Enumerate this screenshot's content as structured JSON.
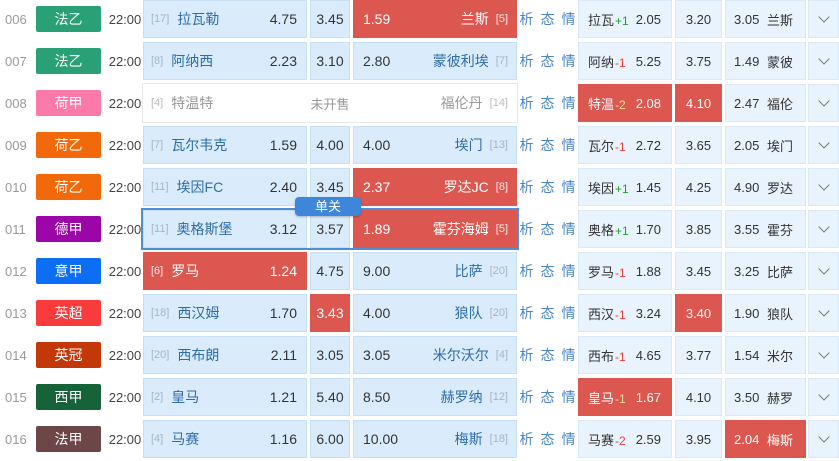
{
  "colors": {
    "hl": "#dc574f",
    "tip": "#3e86da",
    "sel": "#4e8fd6"
  },
  "labels": {
    "links": [
      "析",
      "态",
      "情"
    ],
    "tooltip": "单关",
    "not_on_sale": "未开售"
  },
  "rows": [
    {
      "id": "006",
      "league": {
        "name": "法乙",
        "color": "#2aa076"
      },
      "time": "22:00",
      "home": {
        "rank": "[17]",
        "name": "拉瓦勒",
        "odds": "4.75"
      },
      "draw": {
        "odds": "3.45"
      },
      "away": {
        "odds": "1.59",
        "name": "兰斯",
        "rank": "[5]"
      },
      "highlight": [
        "away"
      ],
      "selected": false,
      "tooltip": false,
      "nosale": false,
      "right": {
        "abbr": "拉瓦",
        "handicap": "+1",
        "o1": "2.05",
        "o2": "3.20",
        "o3": "3.05",
        "team": "兰斯",
        "highlight": []
      }
    },
    {
      "id": "007",
      "league": {
        "name": "法乙",
        "color": "#2aa076"
      },
      "time": "22:00",
      "home": {
        "rank": "[8]",
        "name": "阿纳西",
        "odds": "2.23"
      },
      "draw": {
        "odds": "3.10"
      },
      "away": {
        "odds": "2.80",
        "name": "蒙彼利埃",
        "rank": "[7]"
      },
      "highlight": [],
      "selected": false,
      "tooltip": false,
      "nosale": false,
      "right": {
        "abbr": "阿纳",
        "handicap": "-1",
        "o1": "5.25",
        "o2": "3.75",
        "o3": "1.49",
        "team": "蒙彼",
        "highlight": []
      }
    },
    {
      "id": "008",
      "league": {
        "name": "荷甲",
        "color": "#fb7aa9"
      },
      "time": "22:00",
      "home": {
        "rank": "[4]",
        "name": "特温特",
        "odds": ""
      },
      "draw": {
        "odds": ""
      },
      "away": {
        "odds": "",
        "name": "福伦丹",
        "rank": "[14]"
      },
      "highlight": [],
      "selected": false,
      "tooltip": false,
      "nosale": true,
      "right": {
        "abbr": "特温",
        "handicap": "-2",
        "o1": "2.08",
        "o2": "4.10",
        "o3": "2.47",
        "team": "福伦",
        "highlight": [
          "c1",
          "c2"
        ]
      }
    },
    {
      "id": "009",
      "league": {
        "name": "荷乙",
        "color": "#f2690c"
      },
      "time": "22:00",
      "home": {
        "rank": "[7]",
        "name": "瓦尔韦克",
        "odds": "1.59"
      },
      "draw": {
        "odds": "4.00"
      },
      "away": {
        "odds": "4.00",
        "name": "埃门",
        "rank": "[13]"
      },
      "highlight": [],
      "selected": false,
      "tooltip": false,
      "nosale": false,
      "right": {
        "abbr": "瓦尔",
        "handicap": "-1",
        "o1": "2.72",
        "o2": "3.65",
        "o3": "2.05",
        "team": "埃门",
        "highlight": []
      }
    },
    {
      "id": "010",
      "league": {
        "name": "荷乙",
        "color": "#f2690c"
      },
      "time": "22:00",
      "home": {
        "rank": "[11]",
        "name": "埃因FC",
        "odds": "2.40"
      },
      "draw": {
        "odds": "3.45"
      },
      "away": {
        "odds": "2.37",
        "name": "罗达JC",
        "rank": "[8]"
      },
      "highlight": [
        "away"
      ],
      "selected": false,
      "tooltip": false,
      "nosale": false,
      "right": {
        "abbr": "埃因",
        "handicap": "+1",
        "o1": "1.45",
        "o2": "4.25",
        "o3": "4.90",
        "team": "罗达",
        "highlight": []
      }
    },
    {
      "id": "011",
      "league": {
        "name": "德甲",
        "color": "#9c05a8"
      },
      "time": "22:00",
      "home": {
        "rank": "[11]",
        "name": "奥格斯堡",
        "odds": "3.12"
      },
      "draw": {
        "odds": "3.57"
      },
      "away": {
        "odds": "1.89",
        "name": "霍芬海姆",
        "rank": "[5]"
      },
      "highlight": [
        "away"
      ],
      "selected": true,
      "tooltip": true,
      "nosale": false,
      "right": {
        "abbr": "奥格",
        "handicap": "+1",
        "o1": "1.70",
        "o2": "3.85",
        "o3": "3.55",
        "team": "霍芬",
        "highlight": []
      }
    },
    {
      "id": "012",
      "league": {
        "name": "意甲",
        "color": "#0c6ef5"
      },
      "time": "22:00",
      "home": {
        "rank": "[6]",
        "name": "罗马",
        "odds": "1.24"
      },
      "draw": {
        "odds": "4.75"
      },
      "away": {
        "odds": "9.00",
        "name": "比萨",
        "rank": "[20]"
      },
      "highlight": [
        "home"
      ],
      "selected": false,
      "tooltip": false,
      "nosale": false,
      "right": {
        "abbr": "罗马",
        "handicap": "-1",
        "o1": "1.88",
        "o2": "3.45",
        "o3": "3.25",
        "team": "比萨",
        "highlight": []
      }
    },
    {
      "id": "013",
      "league": {
        "name": "英超",
        "color": "#fa3b3b"
      },
      "time": "22:00",
      "home": {
        "rank": "[18]",
        "name": "西汉姆",
        "odds": "1.70"
      },
      "draw": {
        "odds": "3.43"
      },
      "away": {
        "odds": "4.00",
        "name": "狼队",
        "rank": "[20]"
      },
      "highlight": [
        "draw"
      ],
      "selected": false,
      "tooltip": false,
      "nosale": false,
      "right": {
        "abbr": "西汉",
        "handicap": "-1",
        "o1": "3.24",
        "o2": "3.40",
        "o3": "1.90",
        "team": "狼队",
        "highlight": [
          "c2"
        ]
      }
    },
    {
      "id": "014",
      "league": {
        "name": "英冠",
        "color": "#c23808"
      },
      "time": "22:00",
      "home": {
        "rank": "[20]",
        "name": "西布朗",
        "odds": "2.11"
      },
      "draw": {
        "odds": "3.05"
      },
      "away": {
        "odds": "3.05",
        "name": "米尔沃尔",
        "rank": "[4]"
      },
      "highlight": [],
      "selected": false,
      "tooltip": false,
      "nosale": false,
      "right": {
        "abbr": "西布",
        "handicap": "-1",
        "o1": "4.65",
        "o2": "3.77",
        "o3": "1.54",
        "team": "米尔",
        "highlight": []
      }
    },
    {
      "id": "015",
      "league": {
        "name": "西甲",
        "color": "#176339"
      },
      "time": "22:00",
      "home": {
        "rank": "[2]",
        "name": "皇马",
        "odds": "1.21"
      },
      "draw": {
        "odds": "5.40"
      },
      "away": {
        "odds": "8.50",
        "name": "赫罗纳",
        "rank": "[12]"
      },
      "highlight": [],
      "selected": false,
      "tooltip": false,
      "nosale": false,
      "right": {
        "abbr": "皇马",
        "handicap": "-1",
        "o1": "1.67",
        "o2": "4.10",
        "o3": "3.50",
        "team": "赫罗",
        "highlight": [
          "c1"
        ]
      }
    },
    {
      "id": "016",
      "league": {
        "name": "法甲",
        "color": "#6d4647"
      },
      "time": "22:00",
      "home": {
        "rank": "[4]",
        "name": "马赛",
        "odds": "1.16"
      },
      "draw": {
        "odds": "6.00"
      },
      "away": {
        "odds": "10.00",
        "name": "梅斯",
        "rank": "[18]"
      },
      "highlight": [],
      "selected": false,
      "tooltip": false,
      "nosale": false,
      "right": {
        "abbr": "马赛",
        "handicap": "-2",
        "o1": "2.59",
        "o2": "3.95",
        "o3": "2.04",
        "team": "梅斯",
        "highlight": [
          "c3"
        ]
      }
    }
  ]
}
